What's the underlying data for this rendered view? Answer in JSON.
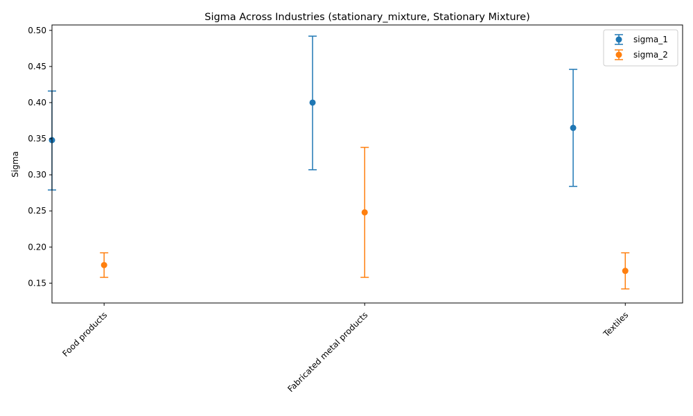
{
  "chart_data": {
    "type": "errorbar",
    "title": "Sigma Across Industries (stationary_mixture, Stationary Mixture)",
    "xlabel": "",
    "ylabel": "Sigma",
    "categories": [
      "Food products",
      "Fabricated metal products",
      "Textiles"
    ],
    "ylim": [
      0.1225,
      0.5075
    ],
    "yticks": [
      "0.15",
      "0.20",
      "0.25",
      "0.30",
      "0.35",
      "0.40",
      "0.45",
      "0.50"
    ],
    "legend_position": "top-right",
    "grid": false,
    "series": [
      {
        "name": "sigma_1",
        "color": "#1f77b4",
        "values": [
          0.348,
          0.4,
          0.365
        ],
        "lower": [
          0.279,
          0.307,
          0.284
        ],
        "upper": [
          0.416,
          0.492,
          0.446
        ]
      },
      {
        "name": "sigma_2",
        "color": "#ff7f0e",
        "values": [
          0.175,
          0.248,
          0.167
        ],
        "lower": [
          0.158,
          0.158,
          0.142
        ],
        "upper": [
          0.192,
          0.338,
          0.192
        ]
      }
    ]
  }
}
